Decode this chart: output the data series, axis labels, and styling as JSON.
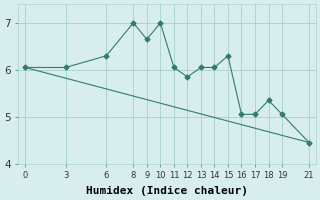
{
  "xlabel": "Humidex (Indice chaleur)",
  "line1_x": [
    0,
    3,
    6,
    8,
    9,
    10,
    11,
    12,
    13,
    14,
    15,
    16,
    17,
    18,
    19,
    21
  ],
  "line1_y": [
    6.05,
    6.05,
    6.3,
    7.0,
    6.65,
    7.0,
    6.05,
    5.85,
    6.05,
    6.05,
    6.3,
    5.05,
    5.05,
    5.35,
    5.05,
    4.45
  ],
  "line2_x": [
    0,
    21
  ],
  "line2_y": [
    6.05,
    4.45
  ],
  "line_color": "#2e7d6e",
  "bg_color": "#d8eeee",
  "grid_color": "#a8d0d0",
  "xlim": [
    -0.5,
    21.5
  ],
  "ylim": [
    4,
    7.4
  ],
  "xticks": [
    0,
    3,
    6,
    8,
    9,
    10,
    11,
    12,
    13,
    14,
    15,
    16,
    17,
    18,
    19,
    21
  ],
  "yticks": [
    4,
    5,
    6,
    7
  ],
  "fontsize_tick": 6,
  "fontsize_label": 8,
  "marker": "D",
  "markersize": 2.5,
  "linewidth": 0.8
}
